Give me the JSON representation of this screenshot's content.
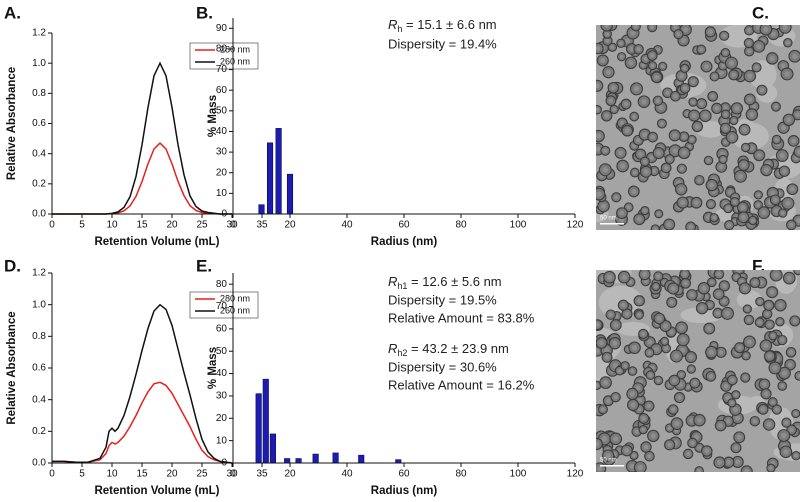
{
  "chart_data": [
    {
      "type": "line",
      "panel_label": "A.",
      "xlabel": "Retention Volume (mL)",
      "ylabel": "Relative Absorbance",
      "x": [
        0,
        1,
        2,
        3,
        4,
        5,
        6,
        7,
        8,
        9,
        10,
        11,
        12,
        13,
        14,
        15,
        16,
        17,
        18,
        19,
        20,
        21,
        22,
        23,
        24,
        25,
        26,
        27,
        28,
        29,
        30
      ],
      "series": [
        {
          "name": "280 nm",
          "color": "#e8201c",
          "values": [
            0,
            0,
            0,
            0,
            0,
            0,
            0,
            0,
            0,
            0,
            0.002,
            0.007,
            0.021,
            0.054,
            0.117,
            0.215,
            0.332,
            0.431,
            0.47,
            0.431,
            0.332,
            0.216,
            0.122,
            0.056,
            0.024,
            0.01,
            0.005,
            0.002,
            0,
            0,
            0
          ]
        },
        {
          "name": "260 nm",
          "color": "#111111",
          "values": [
            0,
            0,
            0,
            0,
            0,
            0,
            0,
            0,
            0,
            0,
            0.004,
            0.014,
            0.044,
            0.114,
            0.249,
            0.458,
            0.707,
            0.917,
            1.0,
            0.917,
            0.707,
            0.46,
            0.26,
            0.12,
            0.05,
            0.02,
            0.01,
            0.005,
            0,
            0,
            0
          ]
        }
      ],
      "xlim": [
        0,
        35
      ],
      "ylim": [
        0,
        1.2
      ],
      "xticks": [
        0,
        5,
        10,
        15,
        20,
        25,
        30,
        35
      ],
      "yticks": [
        {
          "value": 0,
          "label": "0.0"
        },
        0.2,
        0.4,
        0.6,
        0.8,
        {
          "value": 1,
          "label": "1.0"
        },
        1.2
      ],
      "legend": "upper right"
    },
    {
      "type": "bar",
      "panel_label": "B.",
      "xlabel": "Radius (nm)",
      "ylabel": "% Mass",
      "x": [
        10,
        13,
        16,
        20
      ],
      "values": [
        4.5,
        34.5,
        41.5,
        19.3
      ],
      "color": "#1c1cb0",
      "xlim": [
        0,
        120
      ],
      "ylim": [
        0,
        95
      ],
      "xticks": [
        0,
        20,
        40,
        60,
        80,
        100,
        120
      ],
      "yticks": [
        0,
        10,
        20,
        30,
        40,
        50,
        60,
        70,
        80,
        90
      ],
      "annotations": [
        {
          "symbol": "R",
          "subscript": "h",
          "text": " = 15.1 ± 6.6 nm"
        },
        "Dispersity = 19.4%"
      ]
    },
    {
      "type": "line",
      "panel_label": "D.",
      "xlabel": "Retention Volume (mL)",
      "ylabel": "Relative Absorbance",
      "x": [
        0,
        2,
        4,
        6,
        8,
        9,
        9.5,
        10,
        10.5,
        11,
        12,
        13,
        14,
        15,
        16,
        17,
        18,
        19,
        20,
        21,
        22,
        23,
        24,
        25,
        26,
        27,
        28,
        29,
        30
      ],
      "series": [
        {
          "name": "280 nm",
          "color": "#e8201c",
          "values": [
            0.01,
            0.01,
            0.005,
            0.005,
            0.02,
            0.06,
            0.11,
            0.13,
            0.12,
            0.13,
            0.17,
            0.23,
            0.3,
            0.38,
            0.45,
            0.5,
            0.51,
            0.49,
            0.44,
            0.37,
            0.3,
            0.23,
            0.15,
            0.08,
            0.04,
            0.02,
            0.01,
            0.005,
            0
          ]
        },
        {
          "name": "260 nm",
          "color": "#111111",
          "values": [
            0.01,
            0.01,
            0.005,
            0.005,
            0.03,
            0.1,
            0.2,
            0.22,
            0.2,
            0.22,
            0.3,
            0.42,
            0.56,
            0.71,
            0.85,
            0.96,
            1.0,
            0.97,
            0.87,
            0.72,
            0.57,
            0.43,
            0.28,
            0.15,
            0.07,
            0.03,
            0.01,
            0.005,
            0
          ]
        }
      ],
      "xlim": [
        0,
        35
      ],
      "ylim": [
        0,
        1.2
      ],
      "xticks": [
        0,
        5,
        10,
        15,
        20,
        25,
        30,
        35
      ],
      "yticks": [
        {
          "value": 0,
          "label": "0.0"
        },
        0.2,
        0.4,
        0.6,
        0.8,
        {
          "value": 1,
          "label": "1.0"
        },
        1.2
      ],
      "legend": "upper right"
    },
    {
      "type": "bar",
      "panel_label": "E.",
      "xlabel": "Radius (nm)",
      "ylabel": "% Mass",
      "x": [
        9,
        11.5,
        14,
        19,
        23,
        29,
        36,
        45,
        58
      ],
      "values": [
        31,
        37.5,
        13,
        2,
        2,
        4,
        4.5,
        3.5,
        1.5
      ],
      "color": "#1c1cb0",
      "xlim": [
        0,
        120
      ],
      "ylim": [
        0,
        85
      ],
      "xticks": [
        0,
        20,
        40,
        60,
        80,
        100,
        120
      ],
      "yticks": [
        0,
        10,
        20,
        30,
        40,
        50,
        60,
        70,
        80
      ],
      "annotations": [
        {
          "symbol": "R",
          "subscript": "h1",
          "text": " = 12.6 ± 5.6 nm"
        },
        "Dispersity = 19.5%",
        "Relative Amount = 83.8%",
        {
          "symbol": "R",
          "subscript": "h2",
          "text": " = 43.2 ± 23.9 nm"
        },
        "Dispersity = 30.6%",
        "Relative Amount = 16.2%"
      ]
    }
  ],
  "images": [
    {
      "panel_label": "C.",
      "scale_bar": "50 nm"
    },
    {
      "panel_label": "F.",
      "scale_bar": "50 nm"
    }
  ]
}
